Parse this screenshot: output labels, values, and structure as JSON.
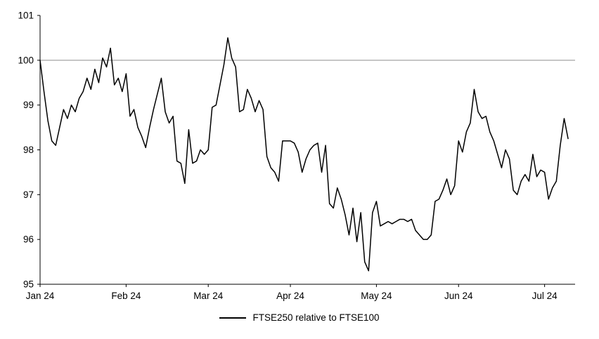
{
  "colors": {
    "line": "#000000",
    "reference_line": "#8c8c8c",
    "axis": "#000000",
    "background": "#ffffff"
  },
  "legend": {
    "label": "FTSE250 relative to FTSE100"
  },
  "chart_data": {
    "type": "line",
    "title": "",
    "xlabel": "",
    "ylabel": "",
    "ylim": [
      95,
      101
    ],
    "y_ticks": [
      95,
      96,
      97,
      98,
      99,
      100,
      101
    ],
    "reference_line": {
      "y": 100
    },
    "grid": false,
    "legend_position": "bottom-center",
    "x_ticks": [
      {
        "label": "Jan 24",
        "index": 0
      },
      {
        "label": "Feb 24",
        "index": 22
      },
      {
        "label": "Mar 24",
        "index": 43
      },
      {
        "label": "Apr 24",
        "index": 64
      },
      {
        "label": "May 24",
        "index": 86
      },
      {
        "label": "Jun 24",
        "index": 107
      },
      {
        "label": "Jul 24",
        "index": 129
      }
    ],
    "series": [
      {
        "name": "FTSE250 relative to FTSE100",
        "values": [
          100.0,
          99.3,
          98.65,
          98.2,
          98.1,
          98.5,
          98.9,
          98.7,
          99.0,
          98.85,
          99.15,
          99.3,
          99.6,
          99.35,
          99.8,
          99.5,
          100.05,
          99.85,
          100.27,
          99.45,
          99.6,
          99.3,
          99.7,
          98.75,
          98.9,
          98.5,
          98.3,
          98.05,
          98.5,
          98.9,
          99.25,
          99.6,
          98.85,
          98.6,
          98.75,
          97.75,
          97.7,
          97.25,
          98.45,
          97.7,
          97.75,
          98.0,
          97.9,
          98.0,
          98.95,
          99.0,
          99.45,
          99.9,
          100.5,
          100.05,
          99.85,
          98.85,
          98.9,
          99.35,
          99.15,
          98.85,
          99.1,
          98.9,
          97.85,
          97.6,
          97.5,
          97.3,
          98.2,
          98.2,
          98.2,
          98.15,
          97.95,
          97.5,
          97.8,
          98.0,
          98.1,
          98.15,
          97.5,
          98.1,
          96.8,
          96.7,
          97.15,
          96.9,
          96.55,
          96.1,
          96.7,
          95.95,
          96.6,
          95.5,
          95.3,
          96.6,
          96.85,
          96.3,
          96.35,
          96.4,
          96.35,
          96.4,
          96.45,
          96.45,
          96.4,
          96.45,
          96.2,
          96.1,
          96.0,
          96.0,
          96.1,
          96.85,
          96.9,
          97.1,
          97.35,
          97.0,
          97.2,
          98.2,
          97.95,
          98.4,
          98.6,
          99.35,
          98.85,
          98.7,
          98.75,
          98.4,
          98.2,
          97.9,
          97.6,
          98.0,
          97.8,
          97.1,
          97.0,
          97.3,
          97.45,
          97.3,
          97.9,
          97.4,
          97.55,
          97.5,
          96.9,
          97.15,
          97.3,
          98.1,
          98.7,
          98.25
        ]
      }
    ]
  }
}
